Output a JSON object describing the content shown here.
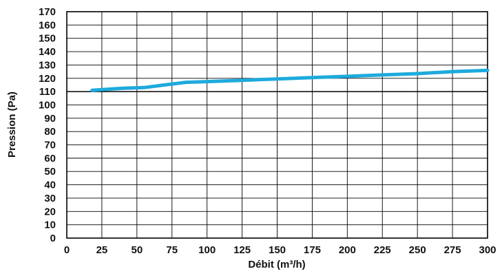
{
  "chart_data": {
    "type": "line",
    "xlabel": "Débit (m³/h)",
    "ylabel": "Pression (Pa)",
    "xlim": [
      0,
      300
    ],
    "ylim": [
      0,
      170
    ],
    "x_ticks": [
      "0",
      "25",
      "50",
      "75",
      "100",
      "125",
      "150",
      "175",
      "200",
      "225",
      "250",
      "275",
      "300"
    ],
    "y_ticks": [
      "0",
      "10",
      "20",
      "30",
      "40",
      "50",
      "60",
      "70",
      "80",
      "90",
      "100",
      "110",
      "120",
      "130",
      "140",
      "150",
      "160",
      "170"
    ],
    "grid": true,
    "highlight_y": 110,
    "colors": {
      "line": "#1eaadc",
      "grid": "#000000",
      "axis_text": "#111111"
    },
    "series": [
      {
        "x": [
          18,
          25,
          40,
          55,
          70,
          85,
          100,
          125,
          150,
          175,
          200,
          225,
          250,
          275,
          300
        ],
        "y": [
          111,
          111.5,
          112.5,
          113,
          115,
          117,
          117.5,
          118.5,
          119.5,
          120.5,
          121.5,
          122.5,
          123.5,
          125,
          126
        ]
      }
    ]
  }
}
